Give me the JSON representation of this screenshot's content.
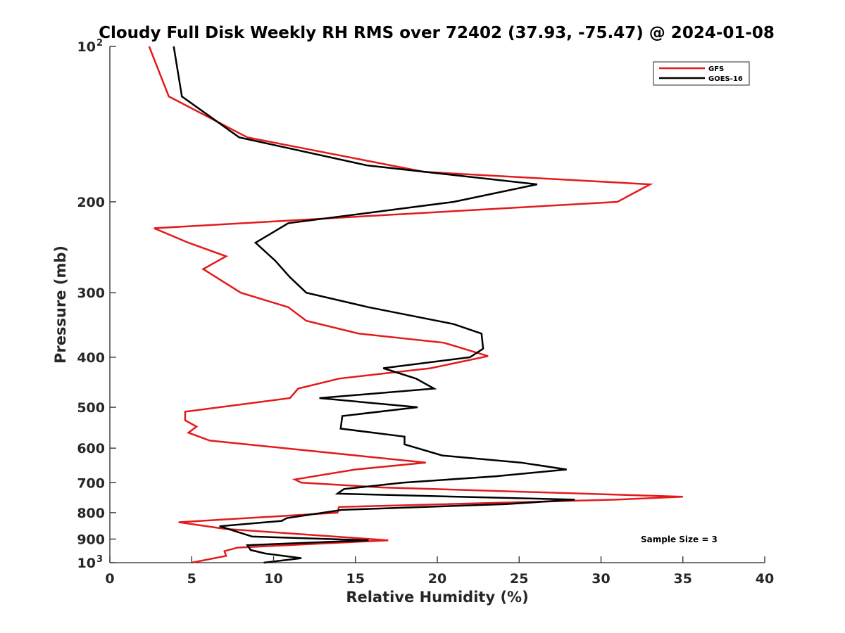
{
  "chart_data": {
    "type": "line",
    "title": "Cloudy Full Disk Weekly RH RMS over 72402 (37.93, -75.47) @ 2024-01-08",
    "xlabel": "Relative Humidity (%)",
    "ylabel": "Pressure (mb)",
    "xlim": [
      0,
      40
    ],
    "ylim": [
      100,
      1000
    ],
    "y_scale": "log",
    "y_reversed": true,
    "grid": false,
    "legend_position": "top-right",
    "x_ticks": [
      "0",
      "5",
      "10",
      "15",
      "20",
      "25",
      "30",
      "35",
      "40"
    ],
    "y_ticks": [
      {
        "value": 100,
        "base": "10",
        "exp": "2"
      },
      {
        "value": 200,
        "label": "200"
      },
      {
        "value": 300,
        "label": "300"
      },
      {
        "value": 400,
        "label": "400"
      },
      {
        "value": 500,
        "label": "500"
      },
      {
        "value": 600,
        "label": "600"
      },
      {
        "value": 700,
        "label": "700"
      },
      {
        "value": 800,
        "label": "800"
      },
      {
        "value": 900,
        "label": "900"
      },
      {
        "value": 1000,
        "base": "10",
        "exp": "3"
      }
    ],
    "series": [
      {
        "name": "GFS",
        "color": "#e31a1c",
        "points": [
          {
            "x": 2.4,
            "p": 100
          },
          {
            "x": 3.6,
            "p": 125
          },
          {
            "x": 8.4,
            "p": 150
          },
          {
            "x": 19.2,
            "p": 175
          },
          {
            "x": 33.0,
            "p": 185
          },
          {
            "x": 31.0,
            "p": 200
          },
          {
            "x": 2.7,
            "p": 225
          },
          {
            "x": 4.8,
            "p": 240
          },
          {
            "x": 7.1,
            "p": 255
          },
          {
            "x": 5.7,
            "p": 270
          },
          {
            "x": 8.0,
            "p": 300
          },
          {
            "x": 10.9,
            "p": 320
          },
          {
            "x": 12.0,
            "p": 340
          },
          {
            "x": 15.2,
            "p": 360
          },
          {
            "x": 20.4,
            "p": 375
          },
          {
            "x": 23.1,
            "p": 398
          },
          {
            "x": 19.6,
            "p": 420
          },
          {
            "x": 14.0,
            "p": 440
          },
          {
            "x": 11.5,
            "p": 460
          },
          {
            "x": 11.0,
            "p": 480
          },
          {
            "x": 4.6,
            "p": 510
          },
          {
            "x": 4.6,
            "p": 530
          },
          {
            "x": 5.3,
            "p": 545
          },
          {
            "x": 4.8,
            "p": 560
          },
          {
            "x": 6.1,
            "p": 580
          },
          {
            "x": 19.3,
            "p": 640
          },
          {
            "x": 15.0,
            "p": 660
          },
          {
            "x": 11.3,
            "p": 690
          },
          {
            "x": 11.7,
            "p": 700
          },
          {
            "x": 16.7,
            "p": 715
          },
          {
            "x": 35.0,
            "p": 745
          },
          {
            "x": 30.9,
            "p": 755
          },
          {
            "x": 14.0,
            "p": 780
          },
          {
            "x": 13.9,
            "p": 800
          },
          {
            "x": 4.2,
            "p": 835
          },
          {
            "x": 7.0,
            "p": 860
          },
          {
            "x": 17.0,
            "p": 905
          },
          {
            "x": 7.8,
            "p": 935
          },
          {
            "x": 7.0,
            "p": 950
          },
          {
            "x": 7.1,
            "p": 970
          },
          {
            "x": 5.0,
            "p": 1000
          }
        ]
      },
      {
        "name": "GOES-16",
        "color": "#000000",
        "points": [
          {
            "x": 3.9,
            "p": 100
          },
          {
            "x": 4.4,
            "p": 125
          },
          {
            "x": 7.9,
            "p": 150
          },
          {
            "x": 15.7,
            "p": 170
          },
          {
            "x": 26.1,
            "p": 185
          },
          {
            "x": 21.0,
            "p": 200
          },
          {
            "x": 10.9,
            "p": 220
          },
          {
            "x": 8.9,
            "p": 240
          },
          {
            "x": 10.1,
            "p": 260
          },
          {
            "x": 11.0,
            "p": 280
          },
          {
            "x": 12.0,
            "p": 300
          },
          {
            "x": 15.8,
            "p": 320
          },
          {
            "x": 21.0,
            "p": 345
          },
          {
            "x": 22.7,
            "p": 360
          },
          {
            "x": 22.8,
            "p": 385
          },
          {
            "x": 22.0,
            "p": 400
          },
          {
            "x": 16.7,
            "p": 420
          },
          {
            "x": 18.7,
            "p": 440
          },
          {
            "x": 19.8,
            "p": 460
          },
          {
            "x": 12.8,
            "p": 480
          },
          {
            "x": 18.8,
            "p": 500
          },
          {
            "x": 14.2,
            "p": 520
          },
          {
            "x": 14.1,
            "p": 550
          },
          {
            "x": 18.0,
            "p": 570
          },
          {
            "x": 18.0,
            "p": 590
          },
          {
            "x": 20.3,
            "p": 620
          },
          {
            "x": 25.1,
            "p": 640
          },
          {
            "x": 27.9,
            "p": 660
          },
          {
            "x": 23.6,
            "p": 680
          },
          {
            "x": 17.9,
            "p": 700
          },
          {
            "x": 14.3,
            "p": 720
          },
          {
            "x": 13.9,
            "p": 735
          },
          {
            "x": 28.4,
            "p": 755
          },
          {
            "x": 24.2,
            "p": 770
          },
          {
            "x": 14.2,
            "p": 790
          },
          {
            "x": 10.8,
            "p": 820
          },
          {
            "x": 10.5,
            "p": 830
          },
          {
            "x": 6.7,
            "p": 850
          },
          {
            "x": 8.7,
            "p": 890
          },
          {
            "x": 15.8,
            "p": 905
          },
          {
            "x": 8.4,
            "p": 925
          },
          {
            "x": 8.6,
            "p": 945
          },
          {
            "x": 9.5,
            "p": 960
          },
          {
            "x": 11.7,
            "p": 980
          },
          {
            "x": 9.4,
            "p": 1000
          }
        ]
      }
    ],
    "annotation": "Sample Size = 3"
  }
}
